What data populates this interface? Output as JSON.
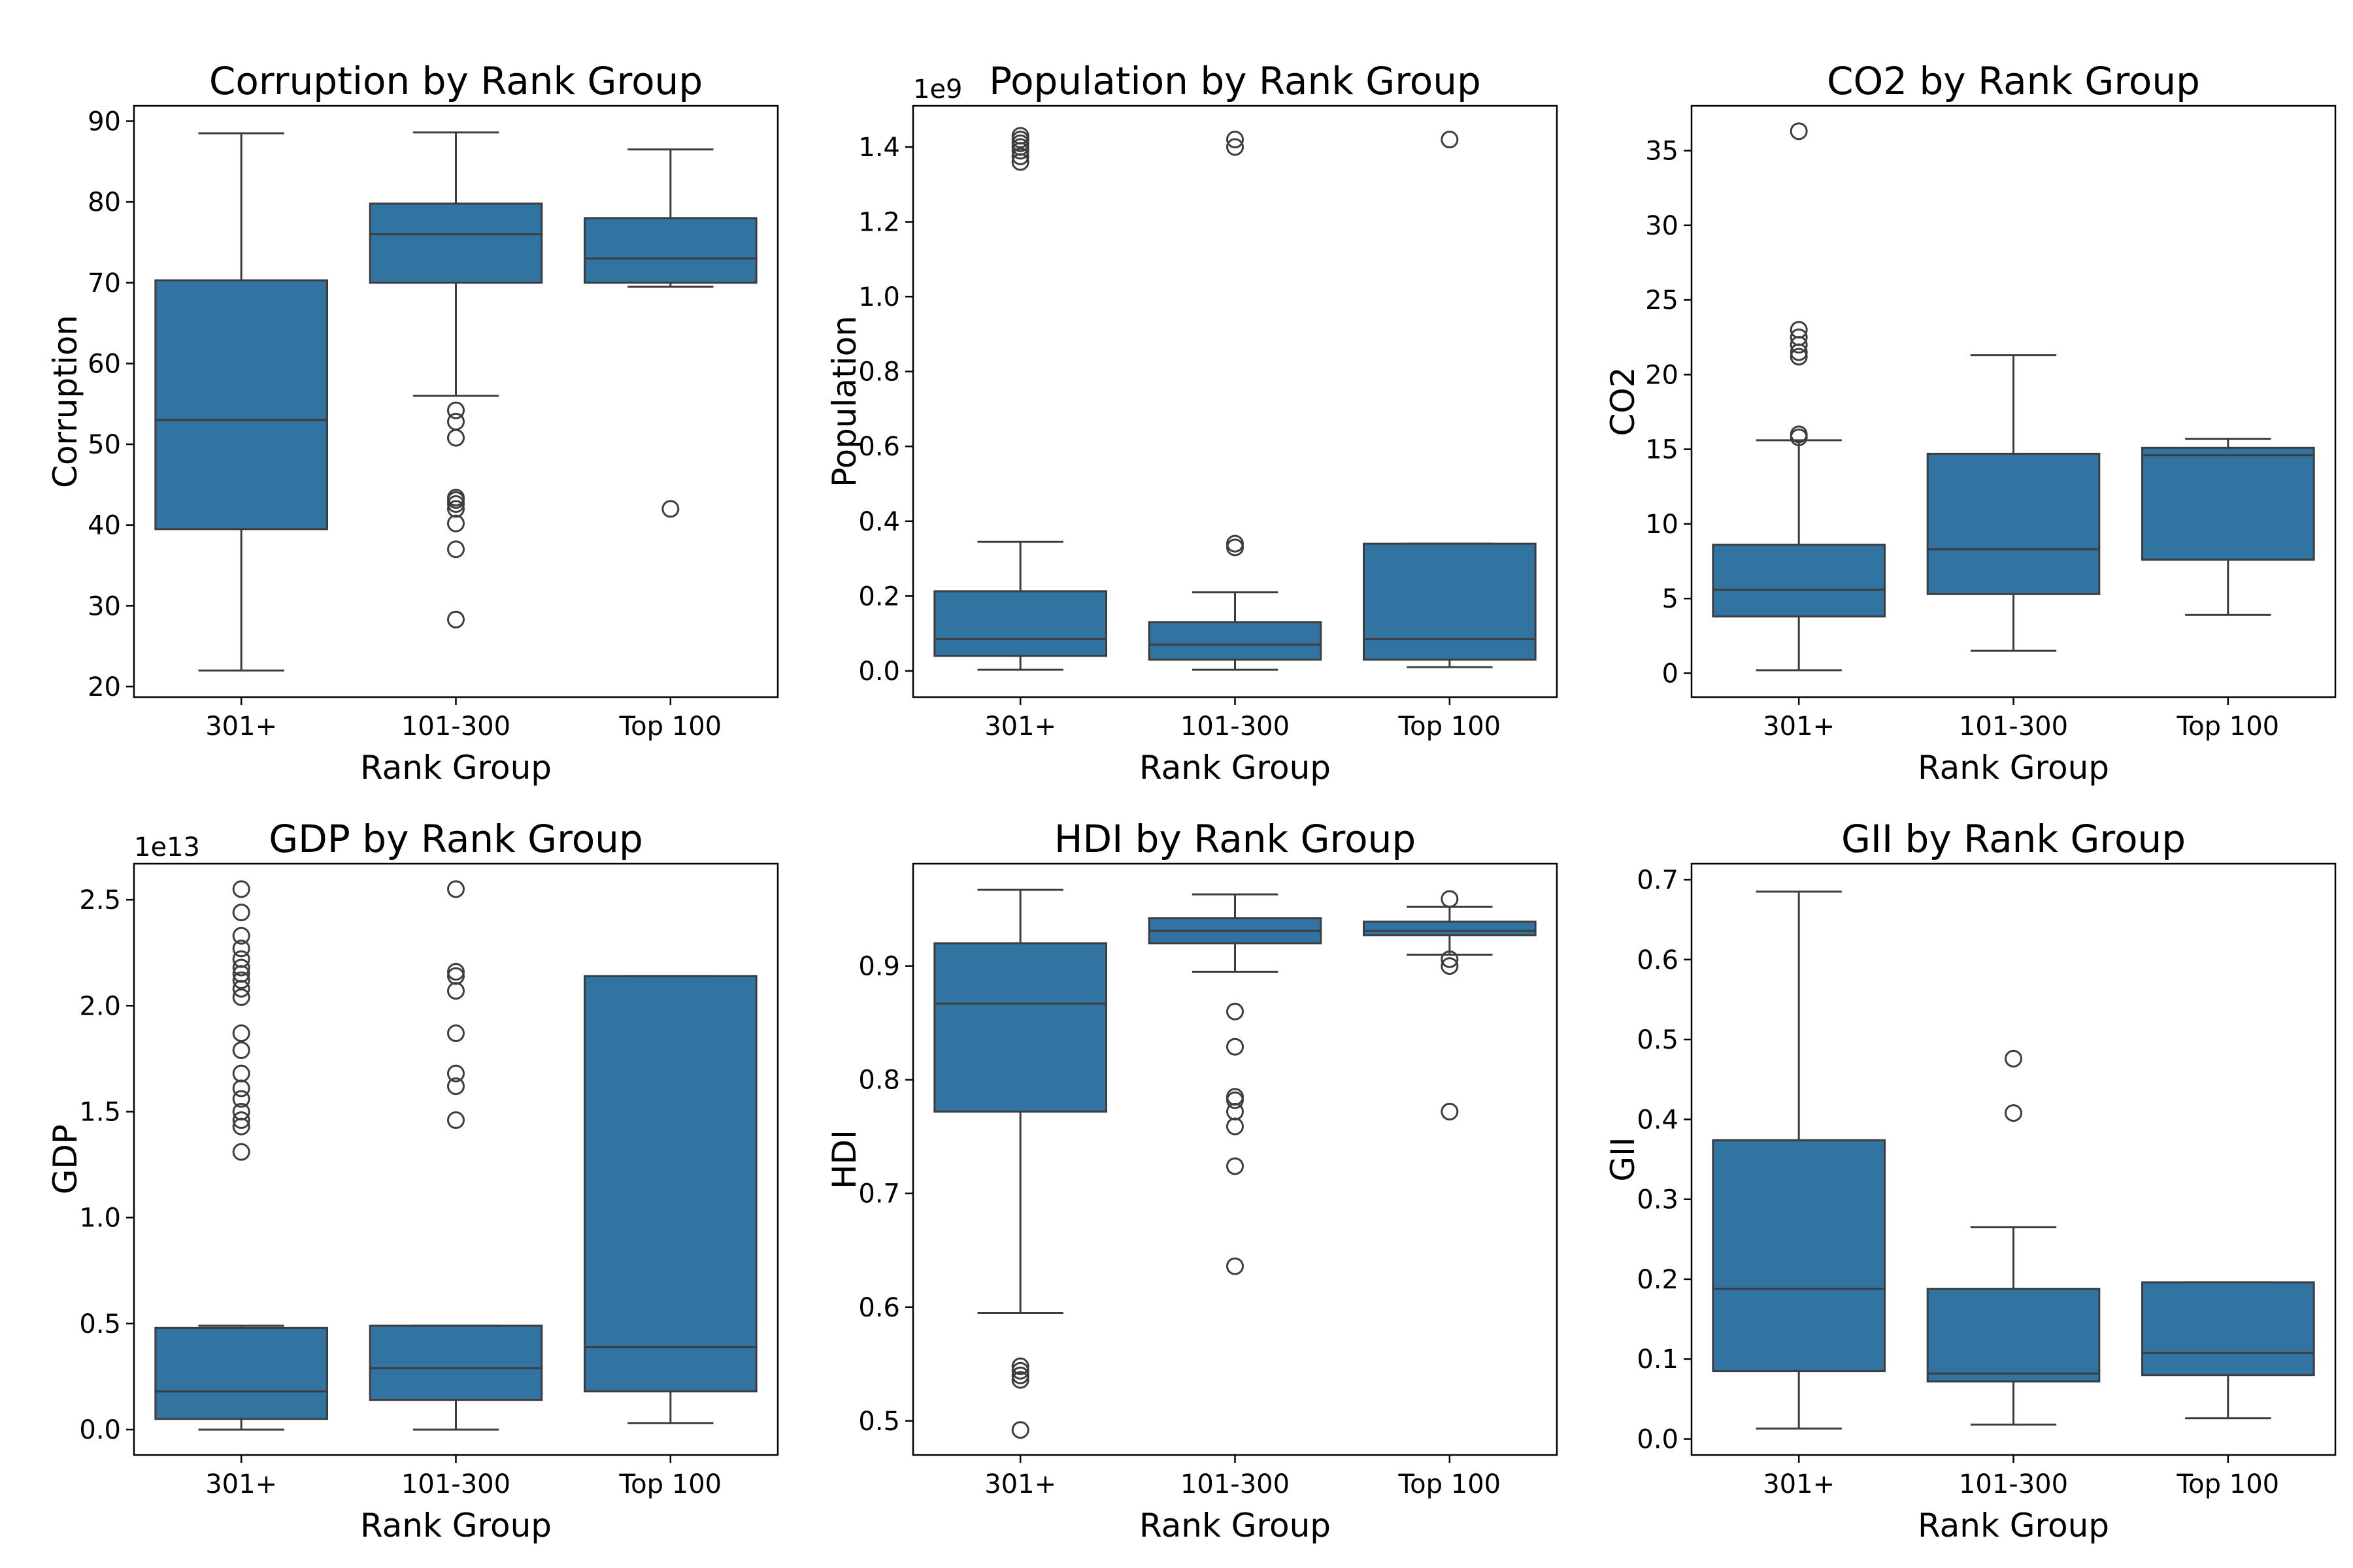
{
  "figure": {
    "background": "#ffffff"
  },
  "style": {
    "box_fill": "#3274a1",
    "line_color": "#3d3d3d"
  },
  "chart_data": [
    {
      "type": "box",
      "title": "Corruption by Rank Group",
      "xlabel": "Rank Group",
      "ylabel": "Corruption",
      "offset_label": "",
      "ylim": [
        18.7,
        91.9
      ],
      "yticks": [
        20,
        30,
        40,
        50,
        60,
        70,
        80,
        90
      ],
      "ytick_labels": [
        "20",
        "30",
        "40",
        "50",
        "60",
        "70",
        "80",
        "90"
      ],
      "grid": false,
      "categories": [
        "301+",
        "101-300",
        "Top 100"
      ],
      "boxes": [
        {
          "whislo": 22,
          "q1": 39.5,
          "med": 53,
          "q3": 70.3,
          "whishi": 88.5,
          "fliers": []
        },
        {
          "whislo": 56,
          "q1": 70,
          "med": 76,
          "q3": 79.8,
          "whishi": 88.6,
          "fliers": [
            54.2,
            52.8,
            50.8,
            43.4,
            43.1,
            42.6,
            42,
            40.2,
            37,
            28.3
          ]
        },
        {
          "whislo": 69.5,
          "q1": 70,
          "med": 73,
          "q3": 78,
          "whishi": 86.5,
          "fliers": [
            42
          ]
        }
      ]
    },
    {
      "type": "box",
      "title": "Population by Rank Group",
      "xlabel": "Rank Group",
      "ylabel": "Population",
      "offset_label": "1e9",
      "ylim": [
        -0.07,
        1.51
      ],
      "yticks": [
        0.0,
        0.2,
        0.4,
        0.6,
        0.8,
        1.0,
        1.2,
        1.4
      ],
      "ytick_labels": [
        "0.0",
        "0.2",
        "0.4",
        "0.6",
        "0.8",
        "1.0",
        "1.2",
        "1.4"
      ],
      "grid": false,
      "categories": [
        "301+",
        "101-300",
        "Top 100"
      ],
      "boxes": [
        {
          "whislo": 0.003,
          "q1": 0.04,
          "med": 0.085,
          "q3": 0.213,
          "whishi": 0.345,
          "fliers": [
            1.43,
            1.42,
            1.41,
            1.4,
            1.39,
            1.375,
            1.36
          ]
        },
        {
          "whislo": 0.003,
          "q1": 0.03,
          "med": 0.07,
          "q3": 0.13,
          "whishi": 0.21,
          "fliers": [
            1.42,
            1.4,
            0.34,
            0.33
          ]
        },
        {
          "whislo": 0.01,
          "q1": 0.03,
          "med": 0.085,
          "q3": 0.34,
          "whishi": 0.34,
          "fliers": [
            1.42
          ]
        }
      ]
    },
    {
      "type": "box",
      "title": "CO2 by Rank Group",
      "xlabel": "Rank Group",
      "ylabel": "CO2",
      "offset_label": "",
      "ylim": [
        -1.6,
        38.0
      ],
      "yticks": [
        0,
        5,
        10,
        15,
        20,
        25,
        30,
        35
      ],
      "ytick_labels": [
        "0",
        "5",
        "10",
        "15",
        "20",
        "25",
        "30",
        "35"
      ],
      "grid": false,
      "categories": [
        "301+",
        "101-300",
        "Top 100"
      ],
      "boxes": [
        {
          "whislo": 0.2,
          "q1": 3.8,
          "med": 5.6,
          "q3": 8.6,
          "whishi": 15.6,
          "fliers": [
            36.3,
            23,
            22.5,
            22,
            21.5,
            21.2,
            16,
            15.8
          ]
        },
        {
          "whislo": 1.5,
          "q1": 5.3,
          "med": 8.3,
          "q3": 14.7,
          "whishi": 21.3,
          "fliers": []
        },
        {
          "whislo": 3.9,
          "q1": 7.6,
          "med": 14.6,
          "q3": 15.1,
          "whishi": 15.7,
          "fliers": []
        }
      ]
    },
    {
      "type": "box",
      "title": "GDP by Rank Group",
      "xlabel": "Rank Group",
      "ylabel": "GDP",
      "offset_label": "1e13",
      "ylim": [
        -0.12,
        2.67
      ],
      "yticks": [
        0.0,
        0.5,
        1.0,
        1.5,
        2.0,
        2.5
      ],
      "ytick_labels": [
        "0.0",
        "0.5",
        "1.0",
        "1.5",
        "2.0",
        "2.5"
      ],
      "grid": false,
      "categories": [
        "301+",
        "101-300",
        "Top 100"
      ],
      "boxes": [
        {
          "whislo": 0.0,
          "q1": 0.05,
          "med": 0.18,
          "q3": 0.48,
          "whishi": 0.49,
          "fliers": [
            2.55,
            2.44,
            2.33,
            2.27,
            2.22,
            2.18,
            2.15,
            2.12,
            2.08,
            2.04,
            1.87,
            1.79,
            1.68,
            1.61,
            1.56,
            1.5,
            1.46,
            1.43,
            1.31
          ]
        },
        {
          "whislo": 0.0,
          "q1": 0.14,
          "med": 0.29,
          "q3": 0.49,
          "whishi": 0.49,
          "fliers": [
            2.55,
            2.16,
            2.14,
            2.07,
            1.87,
            1.68,
            1.62,
            1.46
          ]
        },
        {
          "whislo": 0.03,
          "q1": 0.18,
          "med": 0.39,
          "q3": 2.14,
          "whishi": 2.14,
          "fliers": []
        }
      ]
    },
    {
      "type": "box",
      "title": "HDI by Rank Group",
      "xlabel": "Rank Group",
      "ylabel": "HDI",
      "offset_label": "",
      "ylim": [
        0.47,
        0.99
      ],
      "yticks": [
        0.5,
        0.6,
        0.7,
        0.8,
        0.9
      ],
      "ytick_labels": [
        "0.5",
        "0.6",
        "0.7",
        "0.8",
        "0.9"
      ],
      "grid": false,
      "categories": [
        "301+",
        "101-300",
        "Top 100"
      ],
      "boxes": [
        {
          "whislo": 0.595,
          "q1": 0.772,
          "med": 0.867,
          "q3": 0.92,
          "whishi": 0.967,
          "fliers": [
            0.548,
            0.544,
            0.54,
            0.536,
            0.492
          ]
        },
        {
          "whislo": 0.895,
          "q1": 0.92,
          "med": 0.931,
          "q3": 0.942,
          "whishi": 0.963,
          "fliers": [
            0.86,
            0.829,
            0.785,
            0.782,
            0.772,
            0.759,
            0.724,
            0.636
          ]
        },
        {
          "whislo": 0.91,
          "q1": 0.927,
          "med": 0.931,
          "q3": 0.939,
          "whishi": 0.952,
          "fliers": [
            0.959,
            0.906,
            0.9,
            0.772
          ]
        }
      ]
    },
    {
      "type": "box",
      "title": "GII by Rank Group",
      "xlabel": "Rank Group",
      "ylabel": "GII",
      "offset_label": "",
      "ylim": [
        -0.02,
        0.72
      ],
      "yticks": [
        0.0,
        0.1,
        0.2,
        0.3,
        0.4,
        0.5,
        0.6,
        0.7
      ],
      "ytick_labels": [
        "0.0",
        "0.1",
        "0.2",
        "0.3",
        "0.4",
        "0.5",
        "0.6",
        "0.7"
      ],
      "grid": false,
      "categories": [
        "301+",
        "101-300",
        "Top 100"
      ],
      "boxes": [
        {
          "whislo": 0.013,
          "q1": 0.085,
          "med": 0.188,
          "q3": 0.374,
          "whishi": 0.685,
          "fliers": []
        },
        {
          "whislo": 0.018,
          "q1": 0.072,
          "med": 0.082,
          "q3": 0.188,
          "whishi": 0.265,
          "fliers": [
            0.476,
            0.408
          ]
        },
        {
          "whislo": 0.026,
          "q1": 0.08,
          "med": 0.108,
          "q3": 0.196,
          "whishi": 0.196,
          "fliers": []
        }
      ]
    }
  ]
}
